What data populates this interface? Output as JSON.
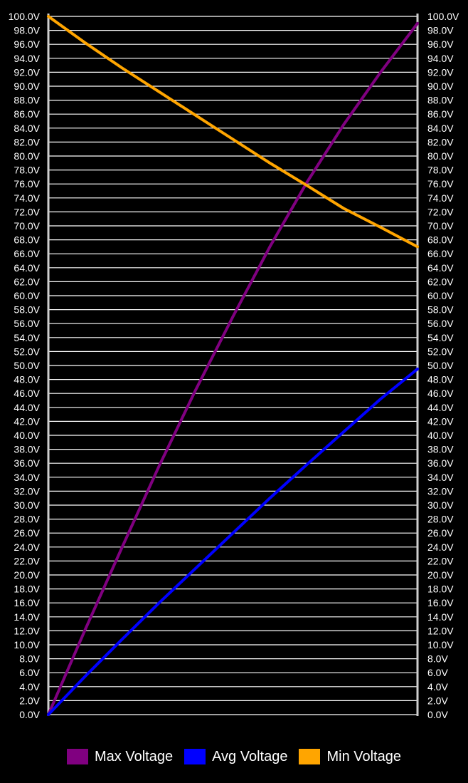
{
  "chart_data": {
    "type": "line",
    "title": "",
    "xlabel": "",
    "ylabel": "",
    "ylim": [
      0,
      100
    ],
    "y_tick_step": 2,
    "y_tick_format": "{v}V",
    "y_axis_both_sides": true,
    "grid": true,
    "legend_position": "bottom-center",
    "x": [
      0,
      1,
      2,
      3,
      4,
      5,
      6,
      7,
      8,
      9,
      10
    ],
    "series": [
      {
        "name": "Max Voltage",
        "color": "#800080",
        "values": [
          0,
          12.2,
          24.0,
          35.6,
          46.6,
          57.0,
          67.0,
          76.2,
          84.5,
          92.0,
          99.0
        ]
      },
      {
        "name": "Avg Voltage",
        "color": "#0000ff",
        "values": [
          0,
          5.5,
          10.8,
          16.0,
          21.0,
          26.0,
          31.0,
          35.8,
          40.5,
          45.2,
          49.5
        ]
      },
      {
        "name": "Min Voltage",
        "color": "#ffa500",
        "values": [
          100.0,
          96.2,
          92.6,
          89.2,
          85.8,
          82.4,
          79.0,
          75.8,
          72.5,
          69.8,
          67.0
        ]
      }
    ]
  }
}
